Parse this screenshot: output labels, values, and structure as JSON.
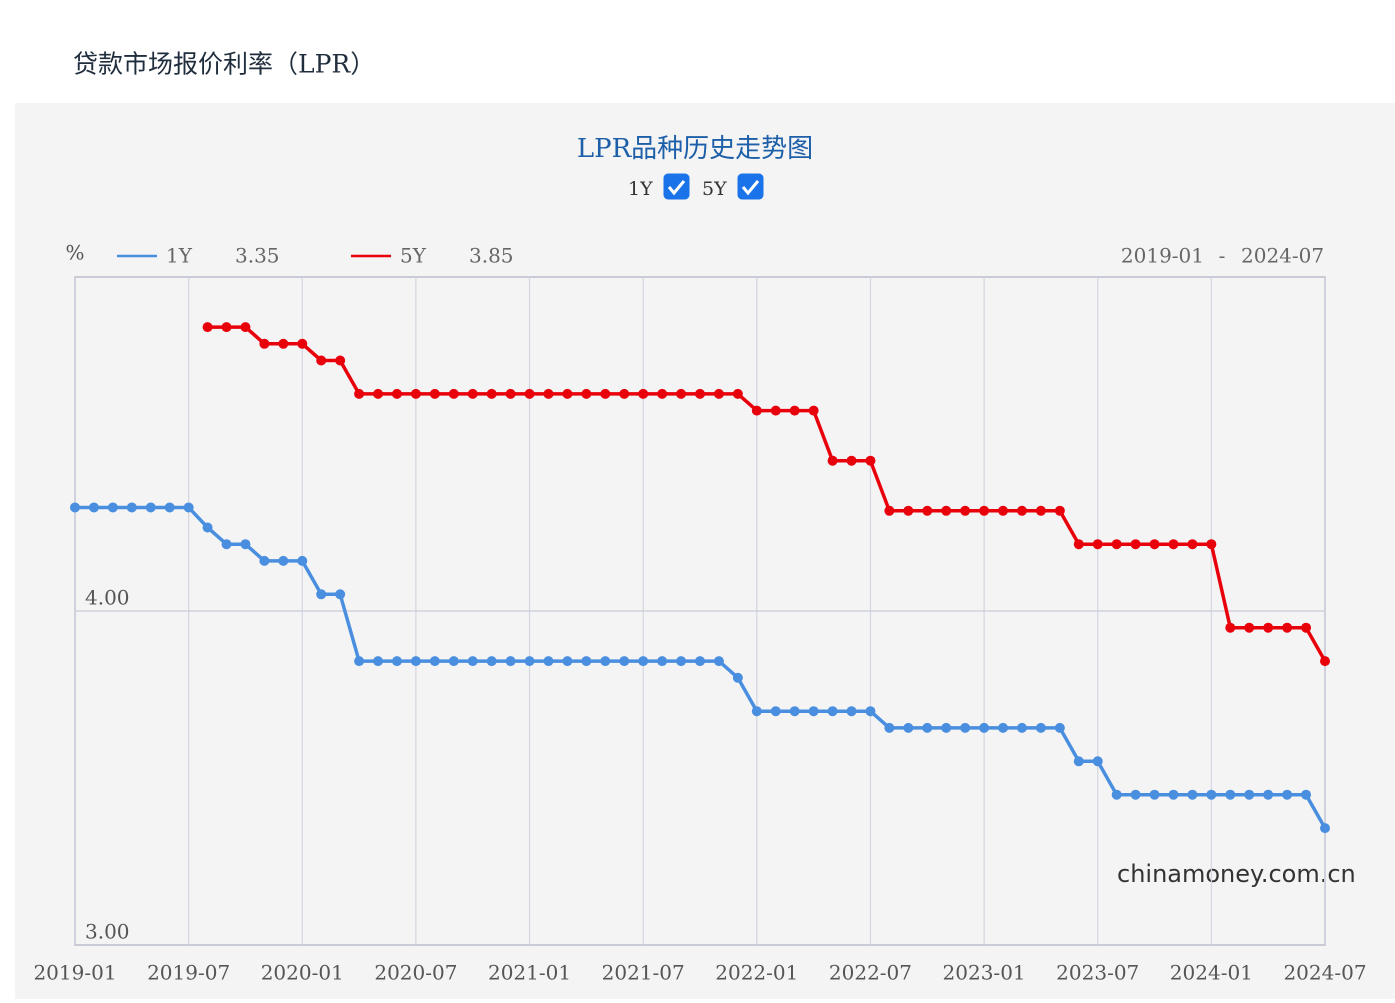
{
  "page_title": "贷款市场报价利率（LPR）",
  "toggles": [
    {
      "label": "1Y",
      "checked": true
    },
    {
      "label": "5Y",
      "checked": true
    }
  ],
  "watermark": "chinamoney.com.cn",
  "range_separator": "-",
  "chart_data": {
    "type": "line",
    "title": "LPR品种历史走势图",
    "y_unit": "%",
    "categories": [
      "2019-01",
      null,
      null,
      null,
      null,
      null,
      "2019-07",
      null,
      null,
      null,
      null,
      null,
      "2020-01",
      null,
      null,
      null,
      null,
      null,
      "2020-07",
      null,
      null,
      null,
      null,
      null,
      "2021-01",
      null,
      null,
      null,
      null,
      null,
      "2021-07",
      null,
      null,
      null,
      null,
      null,
      "2022-01",
      null,
      null,
      null,
      null,
      null,
      "2022-07",
      null,
      null,
      null,
      null,
      null,
      "2023-01",
      null,
      null,
      null,
      null,
      null,
      "2023-07",
      null,
      null,
      null,
      null,
      null,
      "2024-01",
      null,
      null,
      null,
      null,
      null,
      "2024-07"
    ],
    "series": [
      {
        "name": "1Y",
        "color": "#4a8fdf",
        "values": [
          4.31,
          4.31,
          4.31,
          4.31,
          4.31,
          4.31,
          4.31,
          4.25,
          4.2,
          4.2,
          4.15,
          4.15,
          4.15,
          4.05,
          4.05,
          3.85,
          3.85,
          3.85,
          3.85,
          3.85,
          3.85,
          3.85,
          3.85,
          3.85,
          3.85,
          3.85,
          3.85,
          3.85,
          3.85,
          3.85,
          3.85,
          3.85,
          3.85,
          3.85,
          3.85,
          3.8,
          3.7,
          3.7,
          3.7,
          3.7,
          3.7,
          3.7,
          3.7,
          3.65,
          3.65,
          3.65,
          3.65,
          3.65,
          3.65,
          3.65,
          3.65,
          3.65,
          3.65,
          3.55,
          3.55,
          3.45,
          3.45,
          3.45,
          3.45,
          3.45,
          3.45,
          3.45,
          3.45,
          3.45,
          3.45,
          3.45,
          3.35
        ]
      },
      {
        "name": "5Y",
        "color": "#e8000b",
        "values": [
          null,
          null,
          null,
          null,
          null,
          null,
          null,
          4.85,
          4.85,
          4.85,
          4.8,
          4.8,
          4.8,
          4.75,
          4.75,
          4.65,
          4.65,
          4.65,
          4.65,
          4.65,
          4.65,
          4.65,
          4.65,
          4.65,
          4.65,
          4.65,
          4.65,
          4.65,
          4.65,
          4.65,
          4.65,
          4.65,
          4.65,
          4.65,
          4.65,
          4.65,
          4.6,
          4.6,
          4.6,
          4.6,
          4.45,
          4.45,
          4.45,
          4.3,
          4.3,
          4.3,
          4.3,
          4.3,
          4.3,
          4.3,
          4.3,
          4.3,
          4.3,
          4.2,
          4.2,
          4.2,
          4.2,
          4.2,
          4.2,
          4.2,
          4.2,
          3.95,
          3.95,
          3.95,
          3.95,
          3.95,
          3.85
        ]
      }
    ],
    "ylim": [
      3,
      5
    ],
    "yticks": [
      {
        "value": 3,
        "label": "3.00"
      },
      {
        "value": 4,
        "label": "4.00"
      }
    ],
    "grid": true
  }
}
